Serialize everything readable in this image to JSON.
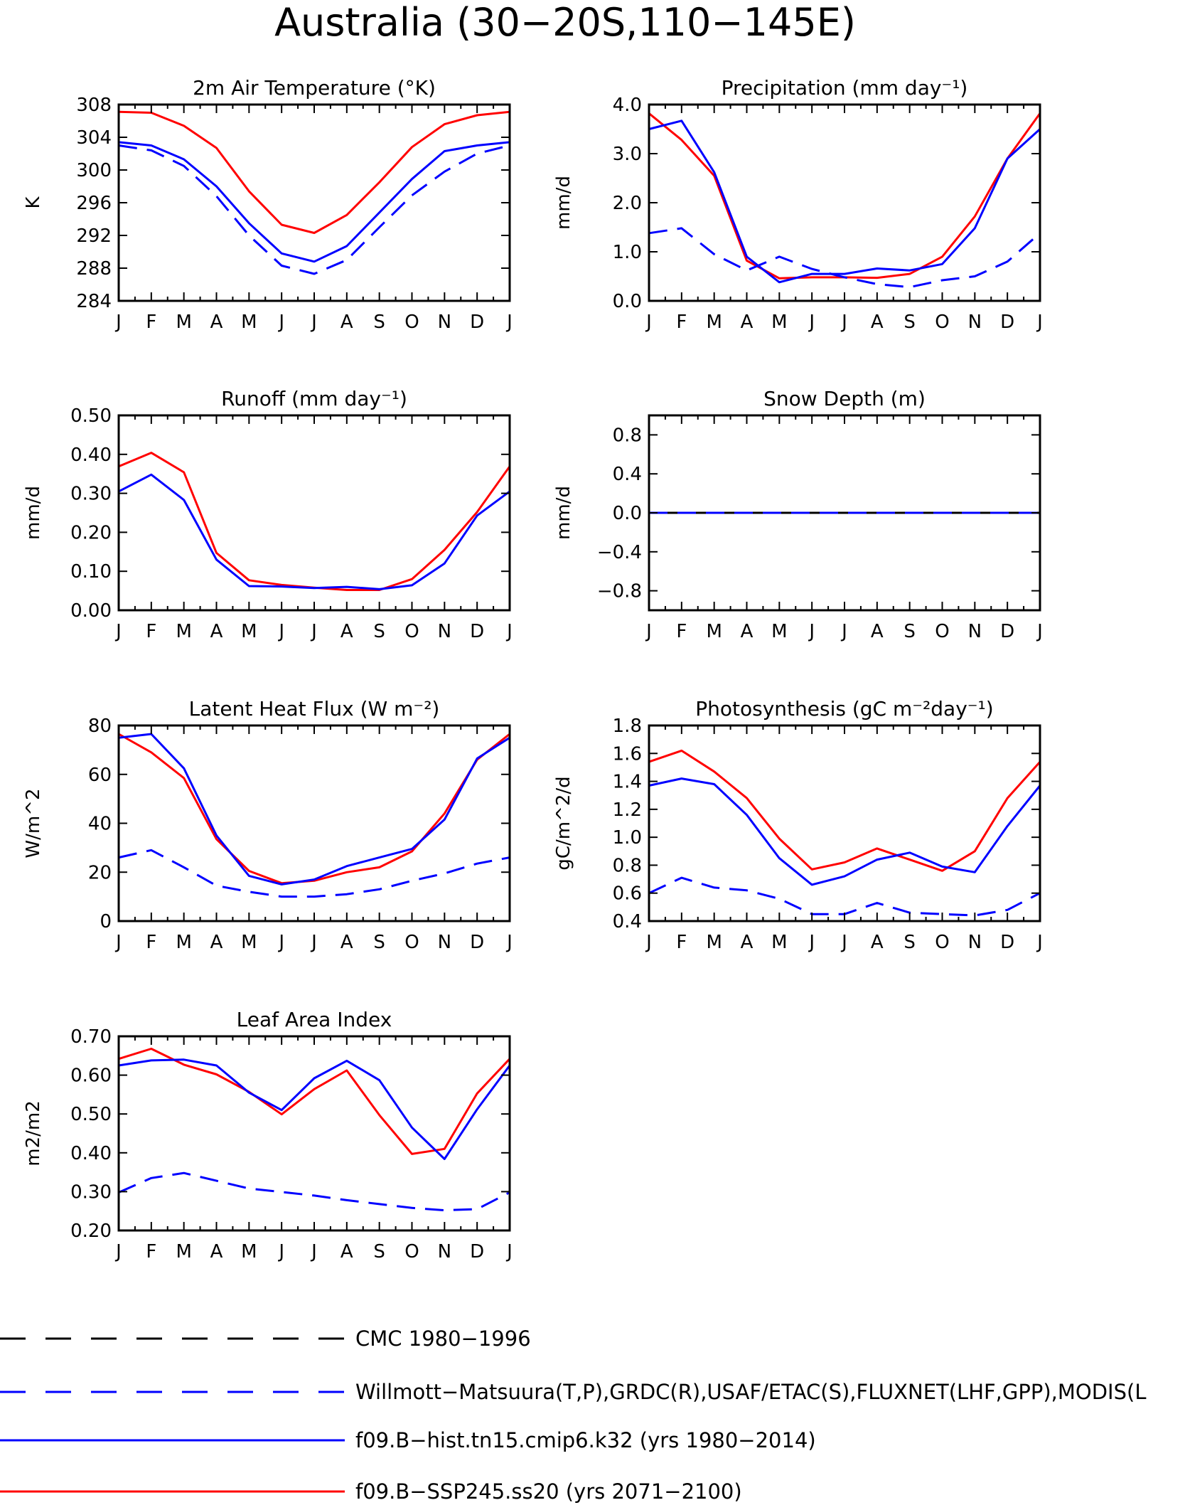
{
  "title": "Australia (30−20S,110−145E)",
  "months": [
    "J",
    "F",
    "M",
    "A",
    "M",
    "J",
    "J",
    "A",
    "S",
    "O",
    "N",
    "D",
    "J"
  ],
  "colors": {
    "obs": "#0000ff",
    "hist": "#0000ff",
    "future": "#ff0000",
    "cmc": "#000000"
  },
  "chart_data": [
    {
      "type": "line",
      "title": "2m Air Temperature (°K)",
      "ylabel": "K",
      "ylim": [
        284,
        308
      ],
      "yticks": [
        284,
        288,
        292,
        296,
        300,
        304,
        308
      ],
      "ytick_labels": [
        "284",
        "288",
        "292",
        "296",
        "300",
        "304",
        "308"
      ],
      "categories": [
        "J",
        "F",
        "M",
        "A",
        "M",
        "J",
        "J",
        "A",
        "S",
        "O",
        "N",
        "D",
        "J"
      ],
      "series": [
        {
          "key": "future",
          "style": "solid",
          "values": [
            307.1,
            307.0,
            305.4,
            302.7,
            297.4,
            293.3,
            292.3,
            294.5,
            298.5,
            302.8,
            305.6,
            306.7,
            307.1
          ]
        },
        {
          "key": "hist",
          "style": "solid",
          "values": [
            303.4,
            303.0,
            301.3,
            298.0,
            293.5,
            289.8,
            288.8,
            290.7,
            294.8,
            298.9,
            302.3,
            303.0,
            303.4
          ]
        },
        {
          "key": "obs",
          "style": "dashed",
          "values": [
            303.0,
            302.4,
            300.5,
            296.8,
            292.0,
            288.3,
            287.3,
            289.0,
            293.0,
            296.9,
            299.8,
            302.0,
            303.0
          ]
        }
      ]
    },
    {
      "type": "line",
      "title": "Precipitation (mm day⁻¹)",
      "ylabel": "mm/d",
      "ylim": [
        0,
        4
      ],
      "yticks": [
        0,
        1,
        2,
        3,
        4
      ],
      "ytick_labels": [
        "0.0",
        "1.0",
        "2.0",
        "3.0",
        "4.0"
      ],
      "categories": [
        "J",
        "F",
        "M",
        "A",
        "M",
        "J",
        "J",
        "A",
        "S",
        "O",
        "N",
        "D",
        "J"
      ],
      "series": [
        {
          "key": "future",
          "style": "solid",
          "values": [
            3.82,
            3.28,
            2.55,
            0.82,
            0.46,
            0.48,
            0.48,
            0.47,
            0.55,
            0.9,
            1.72,
            2.9,
            3.82
          ]
        },
        {
          "key": "hist",
          "style": "solid",
          "values": [
            3.5,
            3.67,
            2.62,
            0.9,
            0.38,
            0.55,
            0.55,
            0.66,
            0.62,
            0.75,
            1.48,
            2.9,
            3.5
          ]
        },
        {
          "key": "obs",
          "style": "dashed",
          "values": [
            1.38,
            1.48,
            0.95,
            0.62,
            0.9,
            0.65,
            0.48,
            0.34,
            0.28,
            0.42,
            0.5,
            0.8,
            1.38
          ]
        }
      ]
    },
    {
      "type": "line",
      "title": "Runoff (mm day⁻¹)",
      "ylabel": "mm/d",
      "ylim": [
        0,
        0.5
      ],
      "yticks": [
        0,
        0.1,
        0.2,
        0.3,
        0.4,
        0.5
      ],
      "ytick_labels": [
        "0.00",
        "0.10",
        "0.20",
        "0.30",
        "0.40",
        "0.50"
      ],
      "categories": [
        "J",
        "F",
        "M",
        "A",
        "M",
        "J",
        "J",
        "A",
        "S",
        "O",
        "N",
        "D",
        "J"
      ],
      "series": [
        {
          "key": "future",
          "style": "solid",
          "values": [
            0.369,
            0.404,
            0.354,
            0.147,
            0.077,
            0.065,
            0.058,
            0.052,
            0.052,
            0.08,
            0.155,
            0.252,
            0.369
          ]
        },
        {
          "key": "hist",
          "style": "solid",
          "values": [
            0.305,
            0.348,
            0.283,
            0.13,
            0.062,
            0.061,
            0.057,
            0.06,
            0.054,
            0.064,
            0.12,
            0.243,
            0.305
          ]
        },
        {
          "key": "obs",
          "style": "dashed",
          "values": [
            0,
            0,
            0,
            0,
            0,
            0,
            0,
            0,
            0,
            0,
            0,
            0,
            0
          ]
        }
      ]
    },
    {
      "type": "line",
      "title": "Snow Depth (m)",
      "ylabel": "mm/d",
      "ylim": [
        -1,
        1
      ],
      "yticks": [
        -0.8,
        -0.4,
        0,
        0.4,
        0.8
      ],
      "ytick_labels": [
        "−0.8",
        "−0.4",
        "0.0",
        "0.4",
        "0.8"
      ],
      "categories": [
        "J",
        "F",
        "M",
        "A",
        "M",
        "J",
        "J",
        "A",
        "S",
        "O",
        "N",
        "D",
        "J"
      ],
      "series": [
        {
          "key": "future",
          "style": "solid",
          "values": [
            0,
            0,
            0,
            0,
            0,
            0,
            0,
            0,
            0,
            0,
            0,
            0,
            0
          ]
        },
        {
          "key": "cmc",
          "style": "solid",
          "values": [
            0,
            0,
            0,
            0,
            0,
            0,
            0,
            0,
            0,
            0,
            0,
            0,
            0
          ]
        },
        {
          "key": "obs",
          "style": "dashed",
          "values": [
            0,
            0,
            0,
            0,
            0,
            0,
            0,
            0,
            0,
            0,
            0,
            0,
            0
          ]
        }
      ]
    },
    {
      "type": "line",
      "title": "Latent Heat Flux (W m⁻²)",
      "ylabel": "W/m^2",
      "ylim": [
        0,
        80
      ],
      "yticks": [
        0,
        20,
        40,
        60,
        80
      ],
      "ytick_labels": [
        "0",
        "20",
        "40",
        "60",
        "80"
      ],
      "categories": [
        "J",
        "F",
        "M",
        "A",
        "M",
        "J",
        "J",
        "A",
        "S",
        "O",
        "N",
        "D",
        "J"
      ],
      "series": [
        {
          "key": "future",
          "style": "solid",
          "values": [
            76.5,
            69.0,
            58.5,
            33.5,
            20.5,
            15.5,
            16.5,
            20.0,
            22.0,
            28.5,
            44.0,
            66.0,
            76.5
          ]
        },
        {
          "key": "hist",
          "style": "solid",
          "values": [
            75.0,
            76.5,
            62.5,
            35.0,
            18.5,
            15.0,
            17.0,
            22.5,
            26.0,
            29.5,
            41.5,
            66.5,
            75.0
          ]
        },
        {
          "key": "obs",
          "style": "dashed",
          "values": [
            26.0,
            29.0,
            22.0,
            14.5,
            12.0,
            10.0,
            10.0,
            11.0,
            13.0,
            16.5,
            19.5,
            23.5,
            26.0
          ]
        }
      ]
    },
    {
      "type": "line",
      "title": "Photosynthesis (gC m⁻²day⁻¹)",
      "ylabel": "gC/m^2/d",
      "ylim": [
        0.4,
        1.8
      ],
      "yticks": [
        0.4,
        0.6,
        0.8,
        1.0,
        1.2,
        1.4,
        1.6,
        1.8
      ],
      "ytick_labels": [
        "0.4",
        "0.6",
        "0.8",
        "1.0",
        "1.2",
        "1.4",
        "1.6",
        "1.8"
      ],
      "categories": [
        "J",
        "F",
        "M",
        "A",
        "M",
        "J",
        "J",
        "A",
        "S",
        "O",
        "N",
        "D",
        "J"
      ],
      "series": [
        {
          "key": "future",
          "style": "solid",
          "values": [
            1.54,
            1.62,
            1.47,
            1.28,
            0.99,
            0.77,
            0.82,
            0.92,
            0.84,
            0.76,
            0.9,
            1.28,
            1.54
          ]
        },
        {
          "key": "hist",
          "style": "solid",
          "values": [
            1.37,
            1.42,
            1.38,
            1.16,
            0.85,
            0.66,
            0.72,
            0.84,
            0.89,
            0.79,
            0.75,
            1.08,
            1.37
          ]
        },
        {
          "key": "obs",
          "style": "dashed",
          "values": [
            0.6,
            0.71,
            0.64,
            0.62,
            0.56,
            0.45,
            0.45,
            0.53,
            0.46,
            0.45,
            0.44,
            0.48,
            0.6
          ]
        }
      ]
    },
    {
      "type": "line",
      "title": "Leaf Area Index",
      "ylabel": "m2/m2",
      "ylim": [
        0.2,
        0.7
      ],
      "yticks": [
        0.2,
        0.3,
        0.4,
        0.5,
        0.6,
        0.7
      ],
      "ytick_labels": [
        "0.20",
        "0.30",
        "0.40",
        "0.50",
        "0.60",
        "0.70"
      ],
      "categories": [
        "J",
        "F",
        "M",
        "A",
        "M",
        "J",
        "J",
        "A",
        "S",
        "O",
        "N",
        "D",
        "J"
      ],
      "series": [
        {
          "key": "future",
          "style": "solid",
          "values": [
            0.642,
            0.668,
            0.627,
            0.602,
            0.557,
            0.499,
            0.564,
            0.612,
            0.497,
            0.397,
            0.41,
            0.553,
            0.642
          ]
        },
        {
          "key": "hist",
          "style": "solid",
          "values": [
            0.625,
            0.638,
            0.64,
            0.625,
            0.555,
            0.51,
            0.592,
            0.637,
            0.587,
            0.465,
            0.384,
            0.512,
            0.625
          ]
        },
        {
          "key": "obs",
          "style": "dashed",
          "values": [
            0.298,
            0.335,
            0.348,
            0.328,
            0.308,
            0.299,
            0.29,
            0.278,
            0.268,
            0.258,
            0.252,
            0.255,
            0.298
          ]
        }
      ]
    }
  ],
  "legend": [
    {
      "key": "cmc",
      "style": "longdash",
      "label": "CMC 1980−1996"
    },
    {
      "key": "obs",
      "style": "longdash",
      "label": "Willmott−Matsuura(T,P),GRDC(R),USAF/ETAC(S),FLUXNET(LHF,GPP),MODIS(L"
    },
    {
      "key": "hist",
      "style": "solid",
      "label": "f09.B−hist.tn15.cmip6.k32 (yrs 1980−2014)"
    },
    {
      "key": "future",
      "style": "solid",
      "label": "f09.B−SSP245.ss20 (yrs 2071−2100)"
    }
  ]
}
